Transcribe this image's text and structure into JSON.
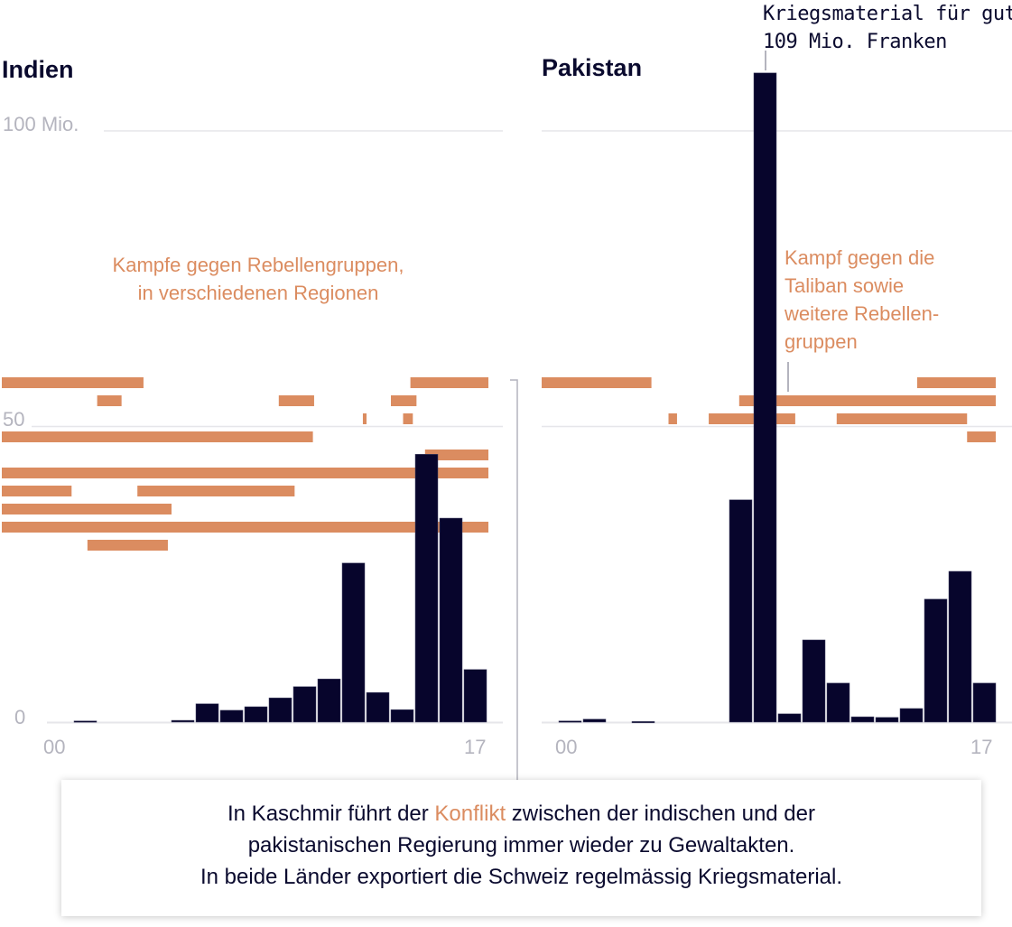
{
  "colors": {
    "bar": "#07052c",
    "conflict": "#db8c60",
    "grid": "#e6e6ea",
    "tick": "#b4b4be"
  },
  "chart_data": [
    {
      "type": "bar",
      "title": "Indien",
      "categories": [
        "2000",
        "2001",
        "2002",
        "2003",
        "2004",
        "2005",
        "2006",
        "2007",
        "2008",
        "2009",
        "2010",
        "2011",
        "2012",
        "2013",
        "2014",
        "2015",
        "2016",
        "2017"
      ],
      "values": [
        0,
        0.2,
        0,
        0,
        0,
        0.3,
        3.1,
        2.0,
        2.6,
        4.1,
        6.0,
        7.3,
        26.9,
        5.0,
        2.1,
        45.3,
        34.5,
        8.9
      ],
      "unit": "Mio. Franken",
      "ylim": [
        0,
        110
      ],
      "yticks": [
        {
          "value": 100,
          "label": "100 Mio."
        },
        {
          "value": 50,
          "label": "50"
        },
        {
          "value": 0,
          "label": "0"
        }
      ],
      "xticks": [
        {
          "year": 2000,
          "label": "00"
        },
        {
          "year": 2017,
          "label": "17"
        }
      ],
      "conflicts": [
        [
          [
            1990,
            2003.85
          ],
          [
            2014.8,
            2018
          ]
        ],
        [
          [
            2001.95,
            2002.95
          ],
          [
            2009.4,
            2010.85
          ],
          [
            2014,
            2015.05
          ]
        ],
        [
          [
            2012.85,
            2013.0
          ],
          [
            2014.5,
            2014.9
          ]
        ],
        [
          [
            1990,
            2010.8
          ]
        ],
        [
          [
            2015.4,
            2018
          ]
        ],
        [
          [
            1990,
            2018
          ]
        ],
        [
          [
            1990,
            2000.9
          ],
          [
            2003.6,
            2010.05
          ]
        ],
        [
          [
            1990,
            2005.0
          ]
        ],
        [
          [
            1990,
            2018
          ]
        ],
        [
          [
            2001.55,
            2004.85
          ]
        ]
      ],
      "annotation": [
        "Kampfe gegen Rebellengruppen,",
        "in verschiedenen Regionen"
      ]
    },
    {
      "type": "bar",
      "title": "Pakistan",
      "categories": [
        "2000",
        "2001",
        "2002",
        "2003",
        "2004",
        "2005",
        "2006",
        "2007",
        "2008",
        "2009",
        "2010",
        "2011",
        "2012",
        "2013",
        "2014",
        "2015",
        "2016",
        "2017"
      ],
      "values": [
        0.2,
        0.5,
        0,
        0.1,
        0,
        0,
        0,
        37.6,
        109.8,
        1.4,
        13.9,
        6.6,
        0.9,
        0.8,
        2.3,
        20.8,
        25.5,
        6.6
      ],
      "unit": "Mio. Franken",
      "ylim": [
        0,
        110
      ],
      "xticks": [
        {
          "year": 2000,
          "label": "00"
        },
        {
          "year": 2017,
          "label": "17"
        }
      ],
      "conflicts": [
        [
          [
            1990,
            2003.8
          ],
          [
            2014.7,
            2018
          ]
        ],
        [
          [
            2007.4,
            2018
          ]
        ],
        [
          [
            2004.5,
            2004.85
          ],
          [
            2006.15,
            2009.7
          ],
          [
            2011.4,
            2016.75
          ]
        ],
        [
          [
            2016.75,
            2018
          ]
        ]
      ],
      "annotation": [
        "Kampf gegen die",
        "Taliban sowie",
        "weitere Rebellen-",
        "gruppen"
      ],
      "peak_annotation": [
        "Kriegsmaterial für gut",
        "109 Mio. Franken"
      ]
    }
  ],
  "footer": {
    "line1_before": "In Kaschmir führt der ",
    "line1_link": "Konflikt",
    "line1_after": " zwischen der indischen und der",
    "line2": "pakistanischen Regierung immer wieder zu Gewaltakten.",
    "line3": "In beide Länder exportiert die Schweiz regelmässig Kriegsmaterial."
  }
}
